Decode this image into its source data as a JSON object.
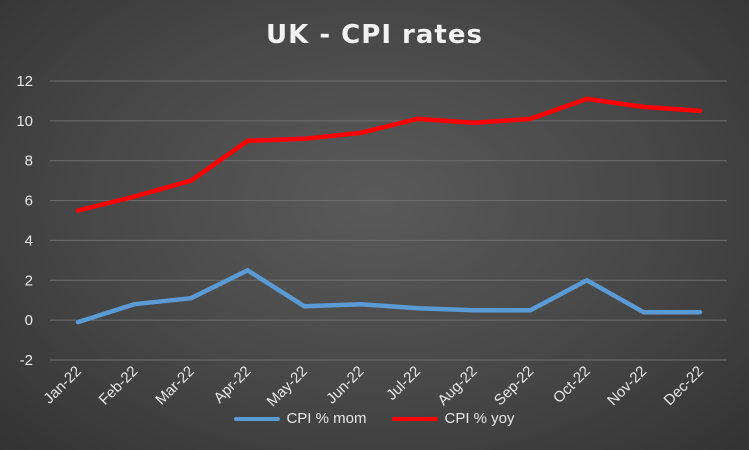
{
  "chart_data": {
    "type": "line",
    "title": "UK - CPI rates",
    "categories": [
      "Jan-22",
      "Feb-22",
      "Mar-22",
      "Apr-22",
      "May-22",
      "Jun-22",
      "Jul-22",
      "Aug-22",
      "Sep-22",
      "Oct-22",
      "Nov-22",
      "Dec-22"
    ],
    "series": [
      {
        "name": "CPI % mom",
        "color": "#5b9bd5",
        "values": [
          -0.1,
          0.8,
          1.1,
          2.5,
          0.7,
          0.8,
          0.6,
          0.5,
          0.5,
          2.0,
          0.4,
          0.4
        ]
      },
      {
        "name": "CPI % yoy",
        "color": "#ff0000",
        "values": [
          5.5,
          6.2,
          7.0,
          9.0,
          9.1,
          9.4,
          10.1,
          9.9,
          10.1,
          11.1,
          10.7,
          10.5
        ]
      }
    ],
    "ylim": [
      -2,
      12
    ],
    "yticks": [
      -2,
      0,
      2,
      4,
      6,
      8,
      10,
      12
    ],
    "grid": true,
    "legend_position": "bottom"
  }
}
